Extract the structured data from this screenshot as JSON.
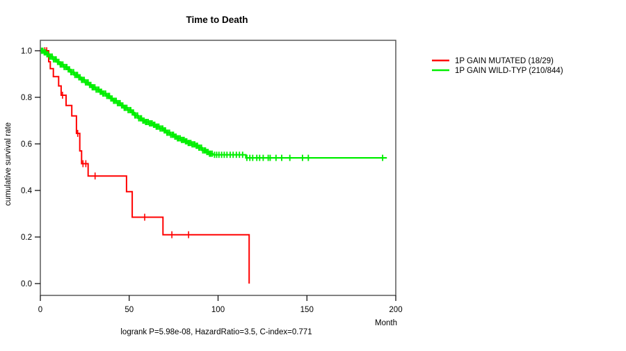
{
  "title": "Time to Death",
  "footer": "logrank P=5.98e-08, HazardRatio=3.5, C-index=0.771",
  "axes": {
    "x": {
      "label": "Month",
      "ticks": [
        "0",
        "50",
        "100",
        "150",
        "200"
      ]
    },
    "y": {
      "label": "cumulative survival rate",
      "ticks": [
        "1.0",
        "0.8",
        "0.6",
        "0.4",
        "0.2",
        "0.0"
      ]
    }
  },
  "legend": [
    {
      "label": "1P GAIN MUTATED (18/29)",
      "color": "#ff0000"
    },
    {
      "label": "1P GAIN WILD-TYP (210/844)",
      "color": "#00ee00"
    }
  ],
  "chart_data": {
    "type": "line",
    "subtype": "kaplan-meier-step",
    "title": "Time to Death",
    "xlabel": "Month",
    "ylabel": "cumulative survival rate",
    "xlim": [
      0,
      200
    ],
    "ylim": [
      0.0,
      1.0
    ],
    "grid": false,
    "legend_position": "right-outside",
    "annotation": "logrank P=5.98e-08, HazardRatio=3.5, C-index=0.771",
    "series": [
      {
        "name": "1P GAIN MUTATED (18/29)",
        "color": "#ff0000",
        "line_width": 2,
        "tick_width": 1.6,
        "tick_half_height": 5,
        "end_time": 117.5,
        "steps": [
          [
            0,
            1.0
          ],
          [
            4.7,
            0.953
          ],
          [
            5.6,
            0.923
          ],
          [
            7.3,
            0.889
          ],
          [
            10.3,
            0.849
          ],
          [
            11.7,
            0.809
          ],
          [
            14.5,
            0.765
          ],
          [
            17.7,
            0.72
          ],
          [
            20.3,
            0.645
          ],
          [
            22.2,
            0.57
          ],
          [
            23.2,
            0.515
          ],
          [
            26.9,
            0.462
          ],
          [
            48.5,
            0.395
          ],
          [
            51.7,
            0.285
          ],
          [
            69,
            0.21
          ],
          [
            117.5,
            0.0
          ]
        ],
        "censor_times": [
          2.5,
          3.6,
          12.5,
          21,
          24,
          25.6,
          30.8,
          58.7,
          74,
          83.4
        ]
      },
      {
        "name": "1P GAIN WILD-TYP (210/844)",
        "color": "#00ee00",
        "line_width": 2.2,
        "tick_width": 1.9,
        "tick_half_height": 4.5,
        "end_time": 195,
        "steps": [
          [
            0,
            1.0
          ],
          [
            1.5,
            0.993
          ],
          [
            3,
            0.985
          ],
          [
            5,
            0.975
          ],
          [
            7,
            0.963
          ],
          [
            9,
            0.952
          ],
          [
            11,
            0.941
          ],
          [
            13,
            0.93
          ],
          [
            15,
            0.92
          ],
          [
            17,
            0.908
          ],
          [
            19,
            0.896
          ],
          [
            21,
            0.886
          ],
          [
            23,
            0.875
          ],
          [
            25,
            0.864
          ],
          [
            27,
            0.853
          ],
          [
            29,
            0.843
          ],
          [
            31,
            0.833
          ],
          [
            33,
            0.824
          ],
          [
            35,
            0.816
          ],
          [
            37,
            0.806
          ],
          [
            39,
            0.795
          ],
          [
            41,
            0.785
          ],
          [
            43,
            0.775
          ],
          [
            45,
            0.765
          ],
          [
            47,
            0.755
          ],
          [
            49,
            0.745
          ],
          [
            51,
            0.735
          ],
          [
            53,
            0.722
          ],
          [
            55,
            0.71
          ],
          [
            57,
            0.7
          ],
          [
            59,
            0.694
          ],
          [
            61,
            0.688
          ],
          [
            63,
            0.682
          ],
          [
            65,
            0.674
          ],
          [
            67,
            0.666
          ],
          [
            69,
            0.658
          ],
          [
            71,
            0.648
          ],
          [
            73,
            0.639
          ],
          [
            75,
            0.631
          ],
          [
            77,
            0.624
          ],
          [
            79,
            0.617
          ],
          [
            81,
            0.611
          ],
          [
            83,
            0.604
          ],
          [
            85,
            0.598
          ],
          [
            87,
            0.592
          ],
          [
            89,
            0.584
          ],
          [
            91,
            0.572
          ],
          [
            93,
            0.565
          ],
          [
            95,
            0.558
          ],
          [
            97,
            0.553
          ],
          [
            115.6,
            0.54
          ]
        ],
        "censor_times": [
          0.7,
          1.4,
          2.2,
          2.9,
          3.7,
          4.4,
          5.2,
          5.9,
          6.7,
          7.4,
          8.2,
          8.9,
          9.7,
          10.4,
          11.2,
          11.9,
          12.7,
          13.4,
          14.2,
          14.9,
          15.7,
          16.4,
          17.2,
          17.9,
          18.7,
          19.4,
          20.2,
          20.9,
          21.7,
          22.4,
          23.2,
          23.9,
          24.7,
          25.4,
          26.2,
          26.9,
          27.7,
          28.4,
          29.2,
          29.9,
          30.7,
          31.4,
          32.2,
          32.9,
          33.7,
          34.4,
          35.2,
          35.9,
          36.7,
          37.4,
          38.2,
          38.9,
          39.7,
          40.4,
          41.2,
          41.9,
          42.7,
          43.4,
          44.2,
          44.9,
          45.7,
          46.4,
          47.2,
          47.9,
          48.7,
          49.4,
          50.2,
          50.9,
          51.7,
          52.4,
          53.2,
          53.9,
          54.7,
          55.4,
          56.2,
          56.9,
          57.7,
          58.4,
          59.2,
          59.9,
          60.7,
          61.4,
          62.2,
          62.9,
          63.7,
          64.4,
          65.2,
          65.9,
          66.7,
          67.4,
          68.2,
          68.9,
          69.7,
          70.4,
          71.2,
          71.9,
          72.7,
          73.4,
          74.2,
          74.9,
          75.7,
          76.4,
          77.2,
          77.9,
          78.7,
          79.4,
          80.2,
          80.9,
          81.7,
          82.4,
          83.2,
          83.9,
          84.7,
          85.4,
          86.2,
          86.9,
          87.7,
          88.4,
          89.2,
          89.9,
          90.7,
          91.4,
          92.2,
          92.9,
          93.7,
          94.4,
          95.2,
          95.9,
          96.7,
          98,
          99.2,
          100.5,
          102,
          103.5,
          105,
          106.8,
          108.5,
          110.3,
          112,
          113.8,
          116.2,
          117.9,
          119.5,
          121.8,
          123.4,
          125.4,
          128.2,
          129.3,
          132.6,
          135.8,
          140.4,
          147.5,
          150.8,
          192.6
        ]
      }
    ]
  }
}
